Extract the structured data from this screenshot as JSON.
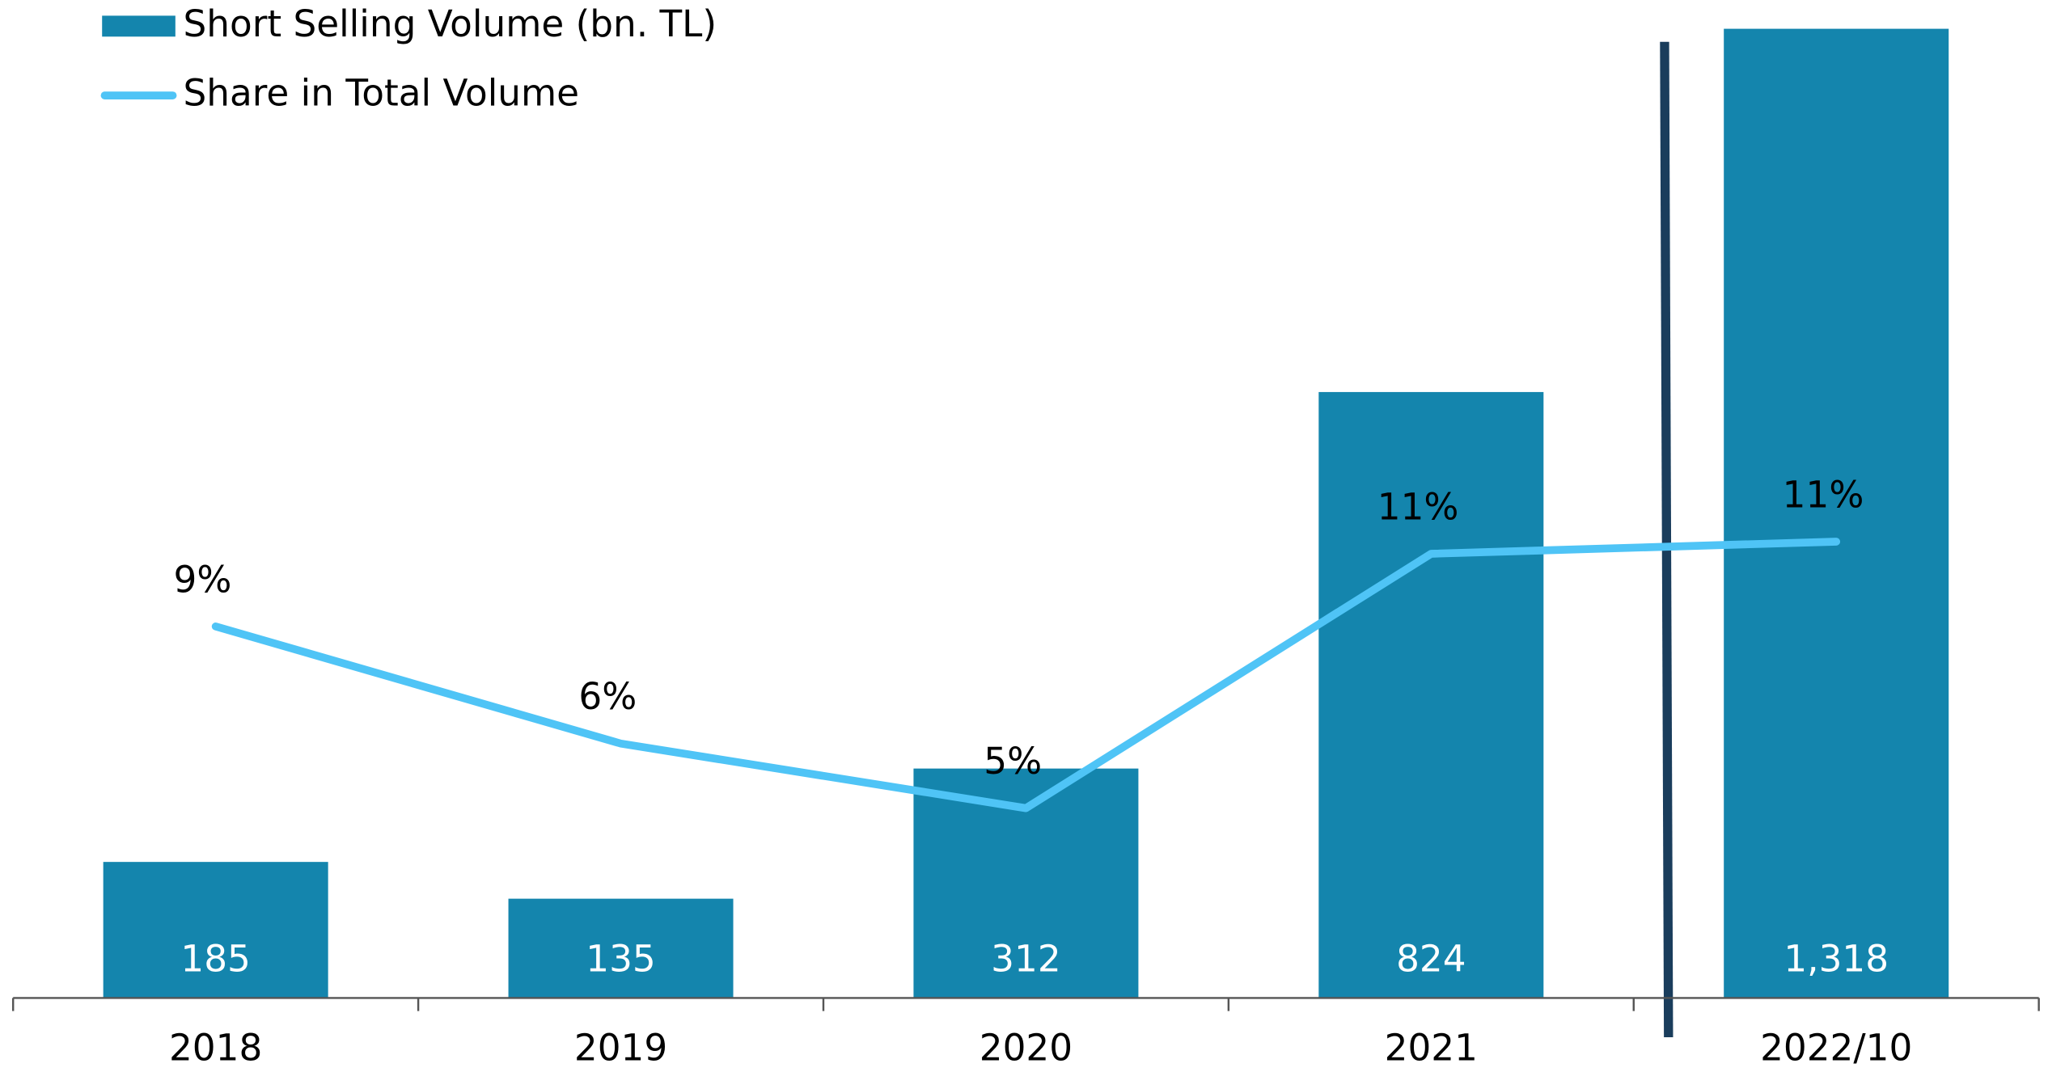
{
  "chart_data": {
    "type": "bar",
    "categories": [
      "2018",
      "2019",
      "2020",
      "2021",
      "2022/10"
    ],
    "ylim": [
      0,
      1318
    ],
    "y2lim": [
      0,
      24
    ],
    "series": [
      {
        "name": "Short Selling Volume (bn. TL)",
        "type": "bar",
        "color": "#1485ad",
        "values": [
          185,
          135,
          312,
          824,
          1318
        ],
        "value_labels": [
          "185",
          "135",
          "312",
          "824",
          "1,318"
        ]
      },
      {
        "name": "Share in Total Volume",
        "type": "line",
        "axis": "y2",
        "color": "#4fc4f6",
        "values": [
          9.2,
          6.3,
          4.7,
          11.0,
          11.3
        ],
        "value_labels": [
          "9%",
          "6%",
          "5%",
          "11%",
          "11%"
        ]
      }
    ]
  }
}
